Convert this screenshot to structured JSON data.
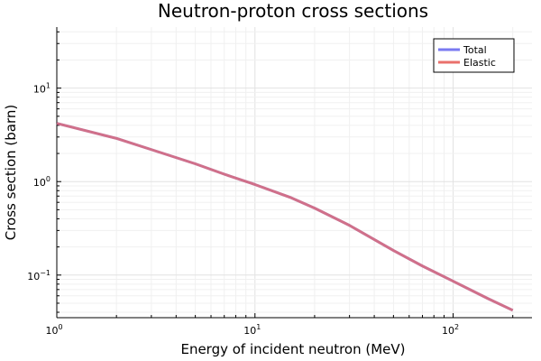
{
  "chart_data": {
    "type": "line",
    "title": "Neutron-proton cross sections",
    "xlabel": "Energy of incident neutron (MeV)",
    "ylabel": "Cross section (barn)",
    "xscale": "log",
    "yscale": "log",
    "xlim": [
      1,
      250
    ],
    "ylim": [
      0.035,
      45
    ],
    "grid": true,
    "legend_position": "top-right",
    "x_ticks": [
      {
        "base": "10",
        "exp": "0"
      },
      {
        "base": "10",
        "exp": "1"
      },
      {
        "base": "10",
        "exp": "2"
      }
    ],
    "y_ticks": [
      {
        "base": "10",
        "exp": "−1"
      },
      {
        "base": "10",
        "exp": "0"
      },
      {
        "base": "10",
        "exp": "1"
      }
    ],
    "series": [
      {
        "name": "Total",
        "color": "#6b6bf0",
        "x": [
          1,
          2,
          3,
          5,
          7,
          10,
          15,
          20,
          30,
          50,
          70,
          100,
          150,
          200
        ],
        "y": [
          4.2,
          2.9,
          2.2,
          1.55,
          1.2,
          0.93,
          0.68,
          0.52,
          0.34,
          0.183,
          0.125,
          0.086,
          0.056,
          0.042
        ]
      },
      {
        "name": "Elastic",
        "color": "#e8605c",
        "x": [
          1,
          2,
          3,
          5,
          7,
          10,
          15,
          20,
          30,
          50,
          70,
          100,
          150,
          200
        ],
        "y": [
          4.2,
          2.9,
          2.2,
          1.55,
          1.2,
          0.93,
          0.68,
          0.52,
          0.34,
          0.183,
          0.125,
          0.086,
          0.056,
          0.042
        ]
      }
    ]
  }
}
